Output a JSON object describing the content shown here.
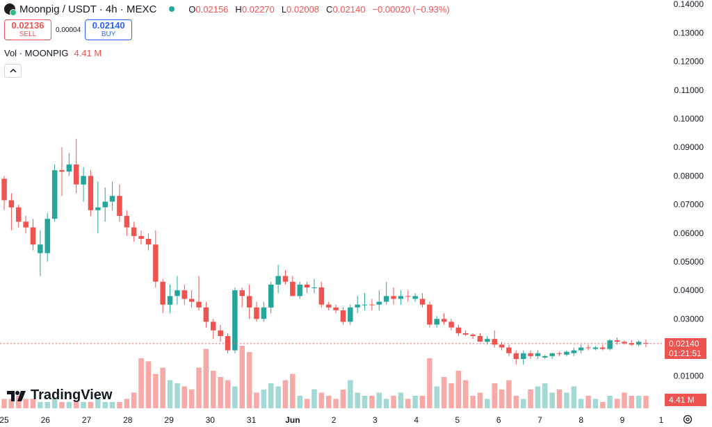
{
  "header": {
    "title": "Moonpig / USDT · 4h · MEXC",
    "ohlc": [
      {
        "k": "O",
        "v": "0.02156"
      },
      {
        "k": "H",
        "v": "0.02270"
      },
      {
        "k": "L",
        "v": "0.02008"
      },
      {
        "k": "C",
        "v": "0.02140"
      },
      {
        "k": "",
        "v": "−0.00020 (−0.93%)"
      }
    ]
  },
  "trade": {
    "sell_price": "0.02136",
    "sell_label": "SELL",
    "spread": "0.00004",
    "buy_price": "0.02140",
    "buy_label": "BUY"
  },
  "volume": {
    "label": "Vol · MOONPIG",
    "value": "4.41 M"
  },
  "last_price": {
    "value": "0.02140",
    "countdown": "01:21:51"
  },
  "watermark": "TradingView",
  "icons": {
    "collapse": "chevron-up-icon",
    "settings": "gear-icon",
    "logo": "moonpig-logo-icon"
  },
  "colors": {
    "up": "#26a69a",
    "down": "#ef5350",
    "up_volume": "#a3d9d4",
    "down_volume": "#f6a9a7"
  },
  "chart_data": {
    "type": "candlestick",
    "y_ticks": [
      "0.14000",
      "0.13000",
      "0.12000",
      "0.11000",
      "0.10000",
      "0.09000",
      "0.08000",
      "0.07000",
      "0.06000",
      "0.05000",
      "0.04000",
      "0.03000",
      "0.01000"
    ],
    "ylim": [
      0.0075,
      0.1403
    ],
    "x_ticks": [
      "25",
      "26",
      "27",
      "28",
      "29",
      "30",
      "31",
      "Jun",
      "2",
      "3",
      "4",
      "5",
      "6",
      "7",
      "8",
      "9",
      "1"
    ],
    "grid": false,
    "candles": [
      [
        0.079,
        0.08,
        0.068,
        0.0715,
        "d"
      ],
      [
        0.0715,
        0.074,
        0.061,
        0.069,
        "d"
      ],
      [
        0.069,
        0.07,
        0.062,
        0.064,
        "d"
      ],
      [
        0.064,
        0.066,
        0.06,
        0.062,
        "d"
      ],
      [
        0.062,
        0.065,
        0.054,
        0.056,
        "d"
      ],
      [
        0.056,
        0.061,
        0.045,
        0.053,
        "u"
      ],
      [
        0.053,
        0.067,
        0.05,
        0.065,
        "u"
      ],
      [
        0.065,
        0.084,
        0.064,
        0.082,
        "u"
      ],
      [
        0.082,
        0.09,
        0.073,
        0.0815,
        "d"
      ],
      [
        0.0815,
        0.088,
        0.08,
        0.084,
        "u"
      ],
      [
        0.084,
        0.093,
        0.074,
        0.077,
        "d"
      ],
      [
        0.077,
        0.083,
        0.071,
        0.08,
        "u"
      ],
      [
        0.08,
        0.082,
        0.066,
        0.068,
        "d"
      ],
      [
        0.068,
        0.078,
        0.06,
        0.069,
        "u"
      ],
      [
        0.069,
        0.076,
        0.064,
        0.071,
        "u"
      ],
      [
        0.071,
        0.078,
        0.068,
        0.073,
        "u"
      ],
      [
        0.073,
        0.077,
        0.064,
        0.066,
        "d"
      ],
      [
        0.066,
        0.068,
        0.059,
        0.062,
        "d"
      ],
      [
        0.062,
        0.064,
        0.057,
        0.059,
        "d"
      ],
      [
        0.059,
        0.061,
        0.056,
        0.058,
        "d"
      ],
      [
        0.058,
        0.06,
        0.054,
        0.056,
        "d"
      ],
      [
        0.056,
        0.061,
        0.041,
        0.043,
        "d"
      ],
      [
        0.043,
        0.044,
        0.032,
        0.035,
        "d"
      ],
      [
        0.035,
        0.042,
        0.032,
        0.038,
        "u"
      ],
      [
        0.038,
        0.045,
        0.035,
        0.04,
        "u"
      ],
      [
        0.04,
        0.042,
        0.035,
        0.037,
        "d"
      ],
      [
        0.037,
        0.04,
        0.034,
        0.036,
        "d"
      ],
      [
        0.036,
        0.045,
        0.033,
        0.034,
        "d"
      ],
      [
        0.034,
        0.036,
        0.027,
        0.029,
        "d"
      ],
      [
        0.029,
        0.03,
        0.023,
        0.026,
        "d"
      ],
      [
        0.026,
        0.028,
        0.022,
        0.024,
        "d"
      ],
      [
        0.024,
        0.025,
        0.018,
        0.019,
        "d"
      ],
      [
        0.019,
        0.041,
        0.018,
        0.04,
        "u"
      ],
      [
        0.04,
        0.041,
        0.034,
        0.038,
        "d"
      ],
      [
        0.038,
        0.042,
        0.03,
        0.034,
        "d"
      ],
      [
        0.034,
        0.036,
        0.029,
        0.03,
        "d"
      ],
      [
        0.03,
        0.036,
        0.029,
        0.034,
        "u"
      ],
      [
        0.034,
        0.043,
        0.032,
        0.042,
        "u"
      ],
      [
        0.042,
        0.049,
        0.039,
        0.045,
        "u"
      ],
      [
        0.045,
        0.047,
        0.042,
        0.043,
        "d"
      ],
      [
        0.043,
        0.045,
        0.038,
        0.038,
        "d"
      ],
      [
        0.038,
        0.043,
        0.037,
        0.042,
        "u"
      ],
      [
        0.042,
        0.043,
        0.039,
        0.041,
        "d"
      ],
      [
        0.041,
        0.044,
        0.039,
        0.041,
        "u"
      ],
      [
        0.041,
        0.043,
        0.034,
        0.035,
        "d"
      ],
      [
        0.035,
        0.036,
        0.033,
        0.034,
        "d"
      ],
      [
        0.034,
        0.035,
        0.032,
        0.033,
        "d"
      ],
      [
        0.033,
        0.034,
        0.028,
        0.029,
        "d"
      ],
      [
        0.029,
        0.035,
        0.028,
        0.034,
        "u"
      ],
      [
        0.034,
        0.038,
        0.032,
        0.035,
        "u"
      ],
      [
        0.035,
        0.039,
        0.033,
        0.035,
        "u"
      ],
      [
        0.035,
        0.037,
        0.033,
        0.035,
        "d"
      ],
      [
        0.035,
        0.04,
        0.033,
        0.036,
        "u"
      ],
      [
        0.036,
        0.043,
        0.035,
        0.038,
        "u"
      ],
      [
        0.038,
        0.041,
        0.035,
        0.037,
        "d"
      ],
      [
        0.037,
        0.04,
        0.035,
        0.038,
        "u"
      ],
      [
        0.038,
        0.04,
        0.036,
        0.038,
        "d"
      ],
      [
        0.038,
        0.039,
        0.036,
        0.037,
        "u"
      ],
      [
        0.037,
        0.039,
        0.034,
        0.035,
        "d"
      ],
      [
        0.035,
        0.036,
        0.027,
        0.028,
        "d"
      ],
      [
        0.028,
        0.031,
        0.027,
        0.03,
        "u"
      ],
      [
        0.03,
        0.032,
        0.028,
        0.029,
        "d"
      ],
      [
        0.029,
        0.03,
        0.026,
        0.027,
        "d"
      ],
      [
        0.027,
        0.028,
        0.024,
        0.025,
        "d"
      ],
      [
        0.025,
        0.026,
        0.024,
        0.0245,
        "d"
      ],
      [
        0.0245,
        0.025,
        0.023,
        0.024,
        "d"
      ],
      [
        0.024,
        0.025,
        0.022,
        0.022,
        "d"
      ],
      [
        0.022,
        0.024,
        0.021,
        0.023,
        "u"
      ],
      [
        0.023,
        0.026,
        0.02,
        0.021,
        "d"
      ],
      [
        0.021,
        0.022,
        0.019,
        0.02,
        "d"
      ],
      [
        0.02,
        0.021,
        0.017,
        0.018,
        "d"
      ],
      [
        0.018,
        0.019,
        0.014,
        0.016,
        "d"
      ],
      [
        0.016,
        0.019,
        0.014,
        0.018,
        "u"
      ],
      [
        0.018,
        0.019,
        0.016,
        0.017,
        "d"
      ],
      [
        0.017,
        0.019,
        0.016,
        0.018,
        "u"
      ],
      [
        0.0165,
        0.0175,
        0.016,
        0.017,
        "u"
      ],
      [
        0.017,
        0.018,
        0.016,
        0.018,
        "u"
      ],
      [
        0.018,
        0.0185,
        0.017,
        0.018,
        "d"
      ],
      [
        0.0175,
        0.019,
        0.017,
        0.0185,
        "u"
      ],
      [
        0.018,
        0.02,
        0.017,
        0.019,
        "u"
      ],
      [
        0.019,
        0.021,
        0.018,
        0.02,
        "u"
      ],
      [
        0.02,
        0.021,
        0.019,
        0.02,
        "d"
      ],
      [
        0.0195,
        0.0205,
        0.019,
        0.02,
        "u"
      ],
      [
        0.02,
        0.021,
        0.019,
        0.0195,
        "d"
      ],
      [
        0.0195,
        0.023,
        0.019,
        0.0225,
        "u"
      ],
      [
        0.0225,
        0.0235,
        0.021,
        0.022,
        "d"
      ],
      [
        0.022,
        0.0225,
        0.021,
        0.0215,
        "d"
      ],
      [
        0.0215,
        0.0225,
        0.0205,
        0.021,
        "d"
      ],
      [
        0.021,
        0.0225,
        0.0205,
        0.022,
        "u"
      ],
      [
        0.0216,
        0.0227,
        0.0201,
        0.0214,
        "d"
      ]
    ],
    "volumes": [
      3,
      3,
      4,
      3,
      3,
      2,
      2,
      3,
      2,
      2,
      2,
      2,
      2,
      3,
      2,
      2,
      2,
      3,
      5,
      16,
      15,
      11,
      13,
      9,
      8,
      7,
      6,
      13,
      19,
      12,
      10,
      9,
      7,
      20,
      18,
      5,
      6,
      8,
      7,
      9,
      11,
      4,
      3,
      6,
      5,
      4,
      3,
      6,
      9,
      5,
      4,
      4,
      5,
      3,
      4,
      5,
      3,
      4,
      4,
      16,
      7,
      10,
      8,
      12,
      9,
      4,
      5,
      3,
      8,
      6,
      9,
      4,
      3,
      6,
      7,
      8,
      5,
      6,
      5,
      7,
      3,
      4,
      3,
      2,
      4,
      3,
      5,
      4,
      4,
      4
    ]
  }
}
